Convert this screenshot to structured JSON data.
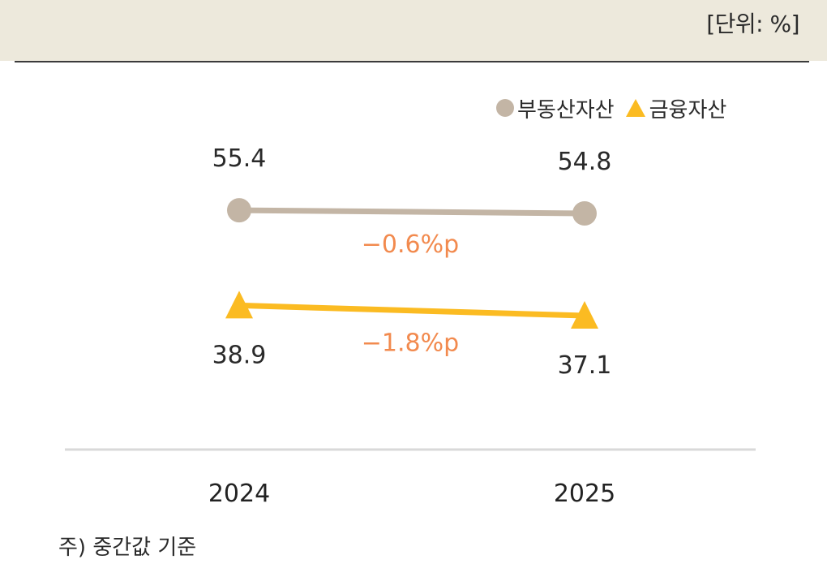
{
  "unit_label": "[단위: %]",
  "note": "주) 중간값 기준",
  "colors": {
    "real_estate": "#c3b5a5",
    "financial": "#fbbb22",
    "change_label": "#f28a4e",
    "axis": "#d9d9d9",
    "band": "#ede9dc"
  },
  "legend": {
    "items": [
      {
        "label": "부동산자산",
        "marker": "circle"
      },
      {
        "label": "금융자산",
        "marker": "triangle"
      }
    ]
  },
  "chart_data": {
    "type": "line",
    "categories": [
      "2024",
      "2025"
    ],
    "series": [
      {
        "name": "부동산자산",
        "values": [
          55.4,
          54.8
        ],
        "value_labels": [
          "55.4",
          "54.8"
        ],
        "change_label": "−0.6%p",
        "marker": "circle"
      },
      {
        "name": "금융자산",
        "values": [
          38.9,
          37.1
        ],
        "value_labels": [
          "38.9",
          "37.1"
        ],
        "change_label": "−1.8%p",
        "marker": "triangle"
      }
    ],
    "title": "",
    "xlabel": "",
    "ylabel": "",
    "grid": false,
    "legend_position": "top-right"
  }
}
